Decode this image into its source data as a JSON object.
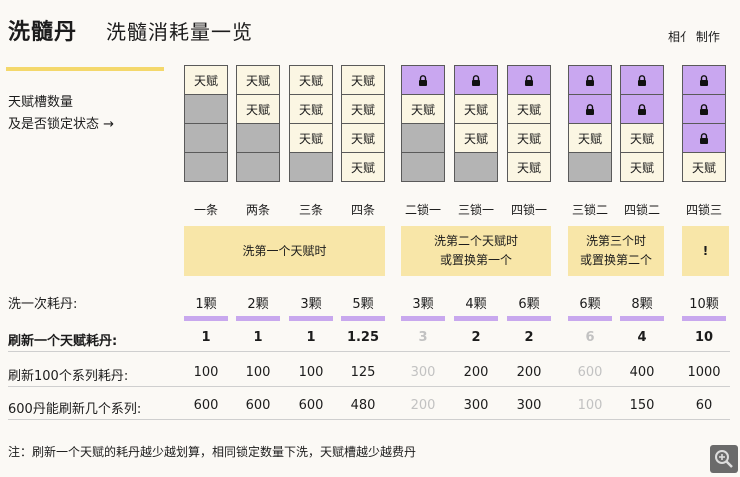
{
  "header": {
    "title": "洗髓丹",
    "subtitle": "洗髓消耗量一览",
    "credit": "相亻 制作"
  },
  "slot_label_line1": "天赋槽数量",
  "slot_label_line2": "及是否锁定状态 →",
  "cell_text": "天赋",
  "columns": [
    {
      "name": "一条",
      "cells": [
        "t",
        "e",
        "e",
        "e"
      ]
    },
    {
      "name": "两条",
      "cells": [
        "t",
        "t",
        "e",
        "e"
      ]
    },
    {
      "name": "三条",
      "cells": [
        "t",
        "t",
        "t",
        "e"
      ]
    },
    {
      "name": "四条",
      "cells": [
        "t",
        "t",
        "t",
        "t"
      ]
    },
    {
      "name": "二锁一",
      "cells": [
        "l",
        "t",
        "e",
        "e"
      ]
    },
    {
      "name": "三锁一",
      "cells": [
        "l",
        "t",
        "t",
        "e"
      ]
    },
    {
      "name": "四锁一",
      "cells": [
        "l",
        "t",
        "t",
        "t"
      ]
    },
    {
      "name": "三锁二",
      "cells": [
        "l",
        "l",
        "t",
        "e"
      ]
    },
    {
      "name": "四锁二",
      "cells": [
        "l",
        "l",
        "t",
        "t"
      ]
    },
    {
      "name": "四锁三",
      "cells": [
        "l",
        "l",
        "l",
        "t"
      ]
    }
  ],
  "bands": [
    {
      "line1": "洗第一个天赋时",
      "line2": ""
    },
    {
      "line1": "洗第二个天赋时",
      "line2": "或置换第一个"
    },
    {
      "line1": "洗第三个时",
      "line2": "或置换第二个"
    },
    {
      "line1": "!",
      "line2": ""
    }
  ],
  "rows": [
    {
      "label": "洗一次耗丹:",
      "values": [
        "1颗",
        "2颗",
        "3颗",
        "5颗",
        "3颗",
        "4颗",
        "6颗",
        "6颗",
        "8颗",
        "10颗"
      ]
    },
    {
      "label": "刷新一个天赋耗丹:",
      "values": [
        "1",
        "1",
        "1",
        "1.25",
        "3",
        "2",
        "2",
        "6",
        "4",
        "10"
      ]
    },
    {
      "label": "刷新100个系列耗丹:",
      "values": [
        "100",
        "100",
        "100",
        "125",
        "300",
        "200",
        "200",
        "600",
        "400",
        "1000"
      ]
    },
    {
      "label": "600丹能刷新几个系列:",
      "values": [
        "600",
        "600",
        "600",
        "480",
        "200",
        "300",
        "300",
        "100",
        "150",
        "60"
      ]
    }
  ],
  "note": "注：刷新一个天赋的耗丹越少越划算，相同锁定数量下洗，天赋槽越少越费丹",
  "colors": {
    "accent_yellow": "#f4d86b",
    "band": "#f8e6a8",
    "lock_purple": "#c9a7f0",
    "empty_gray": "#b4b4b4",
    "underline_purple": "#c8a8ee"
  }
}
